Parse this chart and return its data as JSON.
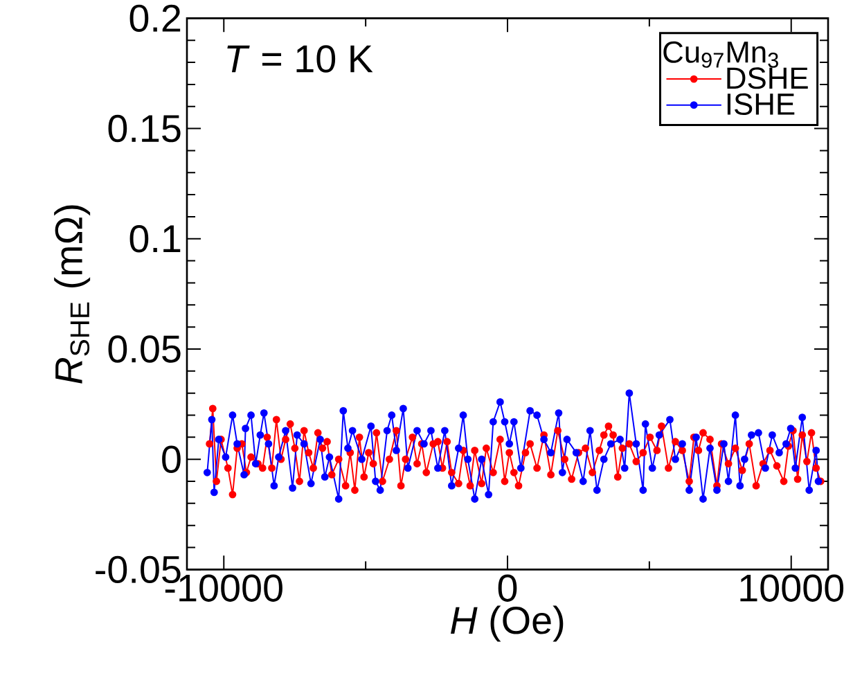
{
  "chart_data": {
    "type": "line",
    "xlabel": "*H* (Oe)",
    "ylabel": "*R*$_{SHE}$ (mΩ)",
    "legend_title": "Cu$_{97}$Mn$_{3}$",
    "annotations": [
      "*T* = 10 K"
    ],
    "xlim": [
      -11300,
      11300
    ],
    "ylim": [
      -0.05,
      0.2
    ],
    "xticks": [
      -10000,
      0,
      10000
    ],
    "yticks": [
      -0.05,
      0,
      0.05,
      0.1,
      0.15,
      0.2
    ],
    "legend": "top right",
    "marker": "circle",
    "line_style": "solid",
    "series": [
      {
        "name": "DSHE",
        "color": "#ff0000",
        "x": [
          -10504,
          -10390,
          -10260,
          -10097,
          -9854,
          -9691,
          -9529,
          -9366,
          -9203,
          -9041,
          -8797,
          -8634,
          -8472,
          -8309,
          -8146,
          -7984,
          -7821,
          -7659,
          -7496,
          -7333,
          -7171,
          -7008,
          -6845,
          -6683,
          -6520,
          -6358,
          -6195,
          -5951,
          -5707,
          -5545,
          -5382,
          -5220,
          -5057,
          -4894,
          -4732,
          -4618,
          -4407,
          -4163,
          -3919,
          -3756,
          -3594,
          -3350,
          -3187,
          -3024,
          -2862,
          -2618,
          -2455,
          -2293,
          -2130,
          -1968,
          -1724,
          -1561,
          -1317,
          -1155,
          -911,
          -748,
          -504,
          -260,
          -98,
          65,
          227,
          390,
          634,
          796,
          1040,
          1284,
          1528,
          1772,
          2016,
          2260,
          2504,
          2748,
          2991,
          3235,
          3398,
          3561,
          3723,
          3886,
          4048,
          4292,
          4536,
          4780,
          5024,
          5268,
          5430,
          5674,
          5918,
          6162,
          6406,
          6569,
          6731,
          6894,
          7138,
          7382,
          7544,
          7788,
          8032,
          8276,
          8520,
          8764,
          9008,
          9252,
          9495,
          9739,
          9902,
          10065,
          10227,
          10390,
          10553,
          10715,
          10878,
          11040
        ],
        "values": [
          0.007,
          0.023,
          -0.01,
          0.009,
          -0.004,
          -0.016,
          0.005,
          0.007,
          -0.006,
          0.001,
          -0.002,
          -0.004,
          0.01,
          -0.004,
          0.018,
          0.0,
          0.009,
          0.016,
          0.005,
          -0.01,
          0.013,
          0.003,
          -0.004,
          0.012,
          0.005,
          0.008,
          -0.007,
          0.0,
          -0.012,
          0.003,
          -0.014,
          0.01,
          -0.008,
          0.003,
          -0.002,
          0.012,
          -0.01,
          0.0,
          0.013,
          -0.012,
          0.0,
          0.01,
          -0.002,
          0.007,
          -0.006,
          0.007,
          0.008,
          -0.004,
          0.008,
          -0.006,
          -0.011,
          0.004,
          -0.012,
          0.004,
          -0.011,
          0.005,
          -0.006,
          0.009,
          -0.01,
          0.003,
          -0.006,
          -0.012,
          0.003,
          0.007,
          -0.004,
          0.011,
          -0.007,
          0.013,
          0.0,
          -0.009,
          0.003,
          0.005,
          -0.006,
          0.004,
          0.011,
          0.015,
          0.011,
          -0.008,
          0.005,
          0.007,
          -0.001,
          0.003,
          0.01,
          0.004,
          0.015,
          -0.004,
          0.008,
          0.004,
          -0.01,
          0.01,
          0.004,
          0.012,
          0.009,
          -0.012,
          0.007,
          -0.002,
          0.005,
          -0.005,
          0.007,
          -0.012,
          -0.002,
          0.004,
          -0.003,
          -0.01,
          0.006,
          0.013,
          -0.009,
          0.011,
          -0.001,
          0.012,
          -0.004,
          -0.01
        ]
      },
      {
        "name": "ISHE",
        "color": "#0000ff",
        "x": [
          -10585,
          -10423,
          -10341,
          -10179,
          -9935,
          -9691,
          -9529,
          -9285,
          -9236,
          -9041,
          -8878,
          -8716,
          -8585,
          -8423,
          -8228,
          -8065,
          -7821,
          -7577,
          -7415,
          -7171,
          -6927,
          -6602,
          -6439,
          -6276,
          -5951,
          -5789,
          -5626,
          -5464,
          -5138,
          -4813,
          -4650,
          -4488,
          -4244,
          -4081,
          -3919,
          -3675,
          -3512,
          -3187,
          -2943,
          -2699,
          -2455,
          -2211,
          -1968,
          -1724,
          -1561,
          -1398,
          -1155,
          -911,
          -667,
          -504,
          -260,
          -98,
          65,
          227,
          471,
          796,
          1040,
          1284,
          1528,
          1804,
          1935,
          2097,
          2422,
          2666,
          2910,
          3154,
          3398,
          3642,
          3967,
          4130,
          4292,
          4536,
          4780,
          4861,
          5105,
          5349,
          5723,
          5918,
          6162,
          6406,
          6650,
          6894,
          7138,
          7382,
          7626,
          7788,
          8032,
          8195,
          8357,
          8601,
          8845,
          9089,
          9333,
          9577,
          9821,
          9983,
          10146,
          10390,
          10634,
          10878,
          10959
        ],
        "values": [
          -0.006,
          0.018,
          -0.015,
          0.009,
          0.001,
          0.02,
          0.007,
          -0.007,
          0.014,
          0.02,
          -0.002,
          0.011,
          0.021,
          0.007,
          -0.012,
          0.001,
          0.013,
          -0.013,
          0.011,
          0.007,
          -0.011,
          0.009,
          -0.008,
          0.001,
          -0.018,
          0.022,
          0.005,
          0.013,
          0.0,
          0.015,
          -0.01,
          -0.014,
          0.013,
          0.02,
          0.004,
          0.023,
          -0.004,
          0.013,
          0.007,
          0.013,
          -0.004,
          0.013,
          -0.012,
          0.005,
          0.02,
          0.0,
          -0.018,
          0.0,
          -0.016,
          0.017,
          0.026,
          0.017,
          0.007,
          0.017,
          -0.004,
          0.022,
          0.02,
          0.009,
          0.003,
          0.021,
          -0.006,
          0.009,
          0.003,
          -0.01,
          0.013,
          -0.014,
          0.0,
          0.007,
          0.009,
          -0.004,
          0.03,
          0.007,
          -0.014,
          0.016,
          -0.004,
          0.011,
          0.018,
          0.0,
          0.007,
          -0.014,
          0.01,
          -0.018,
          0.005,
          -0.014,
          0.007,
          -0.01,
          0.02,
          -0.012,
          0.0,
          0.011,
          0.012,
          -0.004,
          0.011,
          0.003,
          0.007,
          0.014,
          -0.004,
          0.019,
          -0.014,
          0.004,
          -0.01
        ]
      }
    ]
  }
}
